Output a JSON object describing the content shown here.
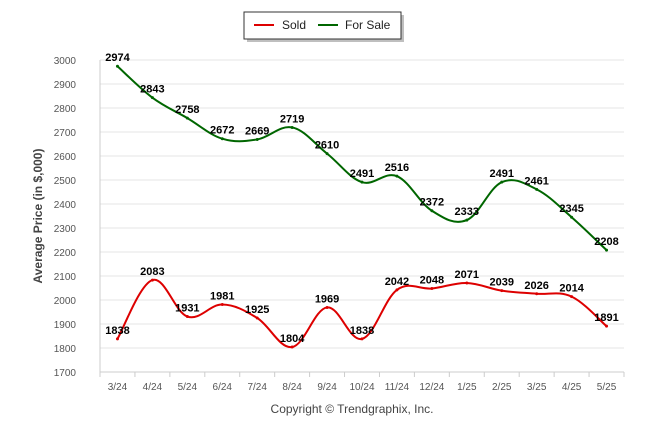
{
  "chart_data": {
    "type": "line",
    "ylabel": "Average Price (in $,000)",
    "credit": "Copyright © Trendgraphix, Inc.",
    "categories": [
      "3/24",
      "4/24",
      "5/24",
      "6/24",
      "7/24",
      "8/24",
      "9/24",
      "10/24",
      "11/24",
      "12/24",
      "1/25",
      "2/25",
      "3/25",
      "4/25",
      "5/25"
    ],
    "ylim": [
      1700,
      3000
    ],
    "yticks": [
      1700,
      1800,
      1900,
      2000,
      2100,
      2200,
      2300,
      2400,
      2500,
      2600,
      2700,
      2800,
      2900,
      3000
    ],
    "grid": true,
    "legend_position": "top-center",
    "series": [
      {
        "name": "Sold",
        "color": "#dd0000",
        "values": [
          1838,
          2083,
          1931,
          1981,
          1925,
          1804,
          1969,
          1838,
          2042,
          2048,
          2071,
          2039,
          2026,
          2014,
          1891
        ]
      },
      {
        "name": "For Sale",
        "color": "#006600",
        "values": [
          2974,
          2843,
          2758,
          2672,
          2669,
          2719,
          2610,
          2491,
          2516,
          2372,
          2333,
          2491,
          2461,
          2345,
          2208
        ]
      }
    ]
  }
}
